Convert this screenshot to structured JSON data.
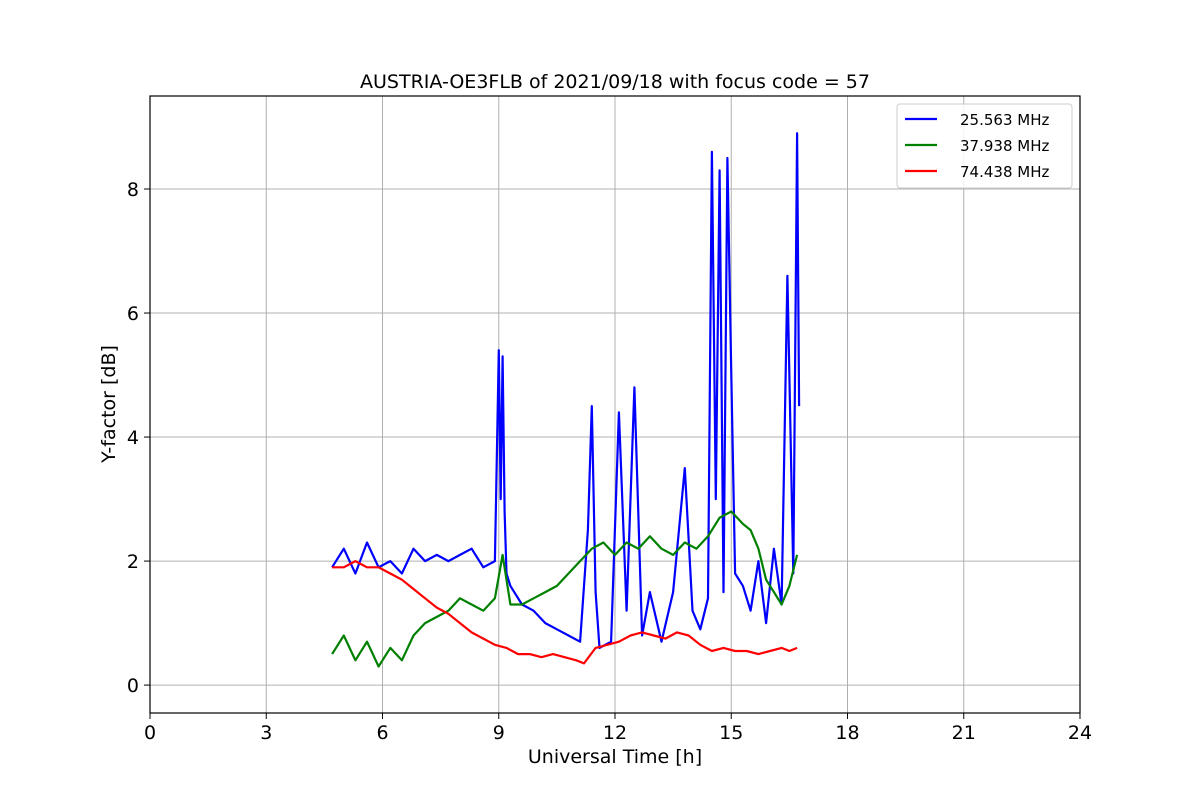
{
  "chart_data": {
    "type": "line",
    "title": "AUSTRIA-OE3FLB of 2021/09/18 with focus code = 57",
    "xlabel": "Universal Time [h]",
    "ylabel": "Y-factor [dB]",
    "xlim": [
      0,
      24
    ],
    "ylim": [
      -0.45,
      9.5
    ],
    "xticks": [
      0,
      3,
      6,
      9,
      12,
      15,
      18,
      21,
      24
    ],
    "yticks": [
      0,
      2,
      4,
      6,
      8
    ],
    "grid": true,
    "legend_position": "top-right",
    "series": [
      {
        "name": "25.563 MHz",
        "color": "#0000ff",
        "x": [
          4.7,
          5.0,
          5.3,
          5.6,
          5.9,
          6.2,
          6.5,
          6.8,
          7.1,
          7.4,
          7.7,
          8.0,
          8.3,
          8.6,
          8.9,
          9.0,
          9.05,
          9.1,
          9.15,
          9.2,
          9.3,
          9.6,
          9.9,
          10.2,
          10.5,
          10.8,
          11.1,
          11.3,
          11.4,
          11.5,
          11.6,
          11.9,
          12.1,
          12.3,
          12.5,
          12.7,
          12.9,
          13.2,
          13.5,
          13.8,
          14.0,
          14.2,
          14.4,
          14.5,
          14.6,
          14.7,
          14.8,
          14.9,
          15.0,
          15.1,
          15.3,
          15.5,
          15.7,
          15.9,
          16.1,
          16.3,
          16.45,
          16.6,
          16.7,
          16.75
        ],
        "y": [
          1.9,
          2.2,
          1.8,
          2.3,
          1.9,
          2.0,
          1.8,
          2.2,
          2.0,
          2.1,
          2.0,
          2.1,
          2.2,
          1.9,
          2.0,
          5.4,
          3.0,
          5.3,
          2.8,
          1.8,
          1.6,
          1.3,
          1.2,
          1.0,
          0.9,
          0.8,
          0.7,
          2.5,
          4.5,
          1.5,
          0.6,
          0.7,
          4.4,
          1.2,
          4.8,
          0.8,
          1.5,
          0.7,
          1.5,
          3.5,
          1.2,
          0.9,
          1.4,
          8.6,
          3.0,
          8.3,
          1.5,
          8.5,
          5.0,
          1.8,
          1.6,
          1.2,
          2.0,
          1.0,
          2.2,
          1.3,
          6.6,
          1.8,
          8.9,
          4.5
        ]
      },
      {
        "name": "37.938 MHz",
        "color": "#008000",
        "x": [
          4.7,
          5.0,
          5.3,
          5.6,
          5.9,
          6.2,
          6.5,
          6.8,
          7.1,
          7.4,
          7.7,
          8.0,
          8.3,
          8.6,
          8.9,
          9.1,
          9.3,
          9.6,
          9.9,
          10.2,
          10.5,
          10.8,
          11.1,
          11.4,
          11.7,
          12.0,
          12.3,
          12.6,
          12.9,
          13.2,
          13.5,
          13.8,
          14.1,
          14.4,
          14.7,
          15.0,
          15.3,
          15.5,
          15.7,
          15.9,
          16.1,
          16.3,
          16.5,
          16.7
        ],
        "y": [
          0.5,
          0.8,
          0.4,
          0.7,
          0.3,
          0.6,
          0.4,
          0.8,
          1.0,
          1.1,
          1.2,
          1.4,
          1.3,
          1.2,
          1.4,
          2.1,
          1.3,
          1.3,
          1.4,
          1.5,
          1.6,
          1.8,
          2.0,
          2.2,
          2.3,
          2.1,
          2.3,
          2.2,
          2.4,
          2.2,
          2.1,
          2.3,
          2.2,
          2.4,
          2.7,
          2.8,
          2.6,
          2.5,
          2.2,
          1.7,
          1.5,
          1.3,
          1.6,
          2.1
        ]
      },
      {
        "name": "74.438 MHz",
        "color": "#ff0000",
        "x": [
          4.7,
          5.0,
          5.3,
          5.6,
          5.9,
          6.2,
          6.5,
          6.8,
          7.1,
          7.4,
          7.7,
          8.0,
          8.3,
          8.6,
          8.9,
          9.2,
          9.5,
          9.8,
          10.1,
          10.4,
          10.7,
          11.0,
          11.2,
          11.5,
          11.8,
          12.1,
          12.4,
          12.7,
          13.0,
          13.3,
          13.6,
          13.9,
          14.2,
          14.5,
          14.8,
          15.1,
          15.4,
          15.7,
          16.0,
          16.3,
          16.5,
          16.7
        ],
        "y": [
          1.9,
          1.9,
          2.0,
          1.9,
          1.9,
          1.8,
          1.7,
          1.55,
          1.4,
          1.25,
          1.15,
          1.0,
          0.85,
          0.75,
          0.65,
          0.6,
          0.5,
          0.5,
          0.45,
          0.5,
          0.45,
          0.4,
          0.35,
          0.6,
          0.65,
          0.7,
          0.8,
          0.85,
          0.8,
          0.75,
          0.85,
          0.8,
          0.65,
          0.55,
          0.6,
          0.55,
          0.55,
          0.5,
          0.55,
          0.6,
          0.55,
          0.6
        ]
      }
    ]
  }
}
